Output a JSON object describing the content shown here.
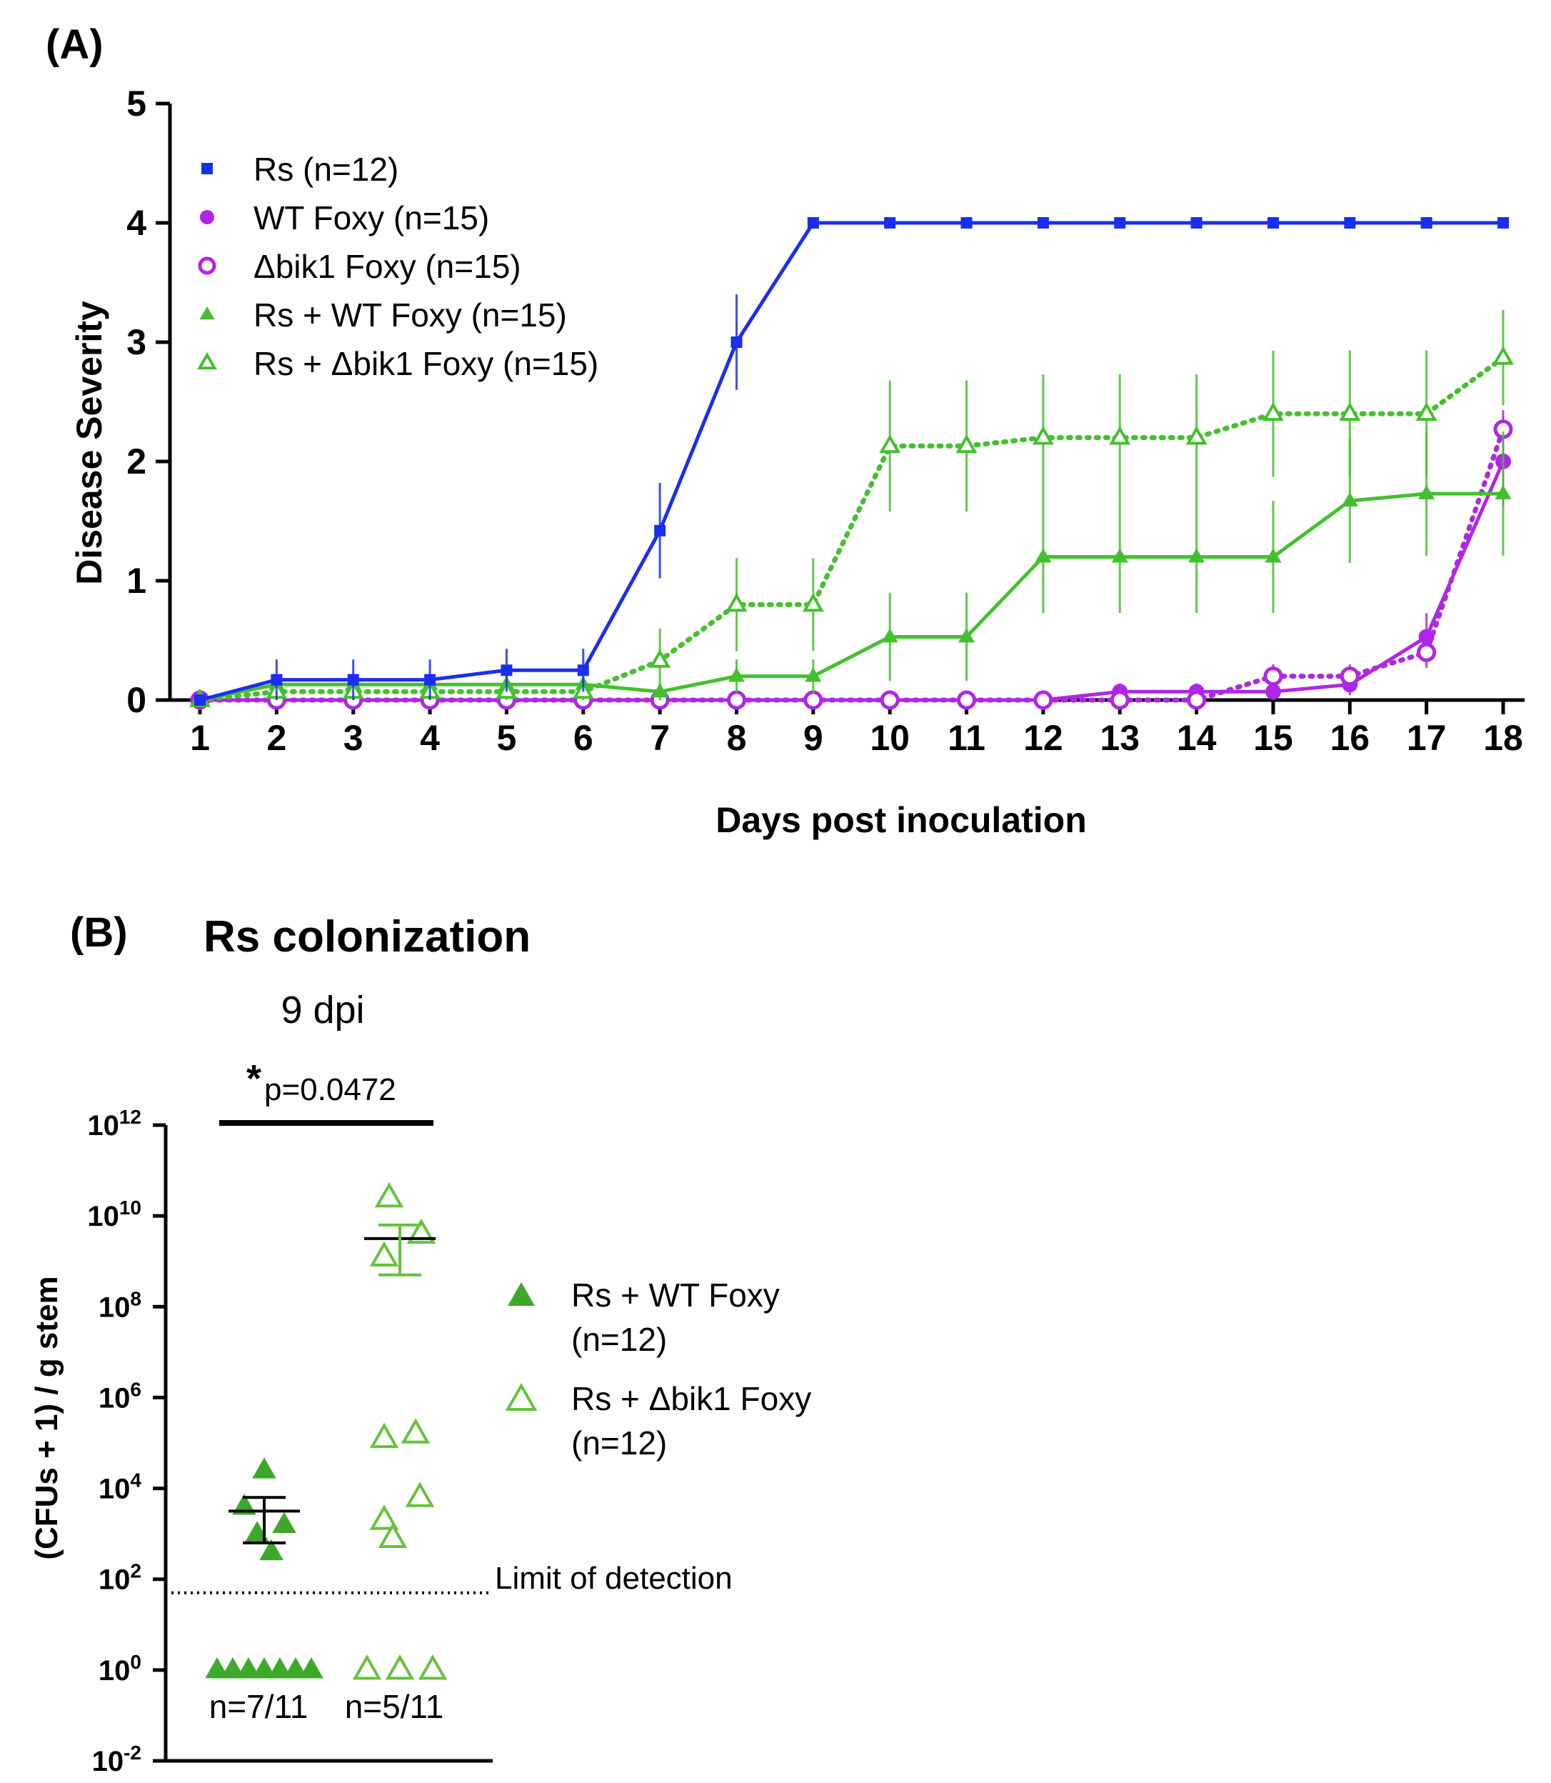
{
  "chart_data": [
    {
      "panel": "(A)",
      "type": "line",
      "xlabel": "Days post inoculation",
      "ylabel": "Disease Severity",
      "xlim": [
        1,
        18
      ],
      "ylim": [
        0,
        5
      ],
      "yticks": [
        "0",
        "1",
        "2",
        "3",
        "4",
        "5"
      ],
      "categories": [
        1,
        2,
        3,
        4,
        5,
        6,
        7,
        8,
        9,
        10,
        11,
        12,
        13,
        14,
        15,
        16,
        17,
        18
      ],
      "series": [
        {
          "name": "Rs (n=12)",
          "color": "#1a2ef0",
          "marker": "square",
          "line": "solid",
          "values": [
            0,
            0.17,
            0.17,
            0.17,
            0.25,
            0.25,
            1.42,
            3.0,
            4,
            4,
            4,
            4,
            4,
            4,
            4,
            4,
            4,
            4
          ],
          "err": [
            0,
            0.17,
            0.17,
            0.17,
            0.18,
            0.18,
            0.4,
            0.4,
            0,
            0,
            0,
            0,
            0,
            0,
            0,
            0,
            0,
            0
          ]
        },
        {
          "name": "WT Foxy (n=15)",
          "color": "#b026e6",
          "marker": "circle",
          "line": "solid",
          "values": [
            0,
            0,
            0,
            0,
            0,
            0,
            0,
            0,
            0,
            0,
            0,
            0,
            0.07,
            0.07,
            0.07,
            0.13,
            0.53,
            2.0
          ],
          "err": [
            0,
            0,
            0,
            0,
            0,
            0,
            0,
            0,
            0,
            0,
            0,
            0,
            0.07,
            0.07,
            0.07,
            0.09,
            0.2,
            0.38
          ]
        },
        {
          "name": "Δbik1 Foxy (n=15)",
          "color": "#b026e6",
          "marker": "circle-open",
          "line": "dotted",
          "values": [
            0,
            0,
            0,
            0,
            0,
            0,
            0,
            0,
            0,
            0,
            0,
            0,
            0,
            0,
            0.2,
            0.2,
            0.4,
            2.27
          ],
          "err": [
            0,
            0,
            0,
            0,
            0,
            0,
            0,
            0,
            0,
            0,
            0.0,
            0,
            0,
            0,
            0.1,
            0.1,
            0.13,
            0.16
          ]
        },
        {
          "name": "Rs + WT Foxy (n=15)",
          "color": "#44c02e",
          "marker": "triangle",
          "line": "solid",
          "values": [
            0,
            0.13,
            0.13,
            0.13,
            0.13,
            0.13,
            0.07,
            0.2,
            0.2,
            0.53,
            0.53,
            1.2,
            1.2,
            1.2,
            1.2,
            1.67,
            1.73,
            1.73
          ],
          "err": [
            0,
            0.09,
            0.09,
            0.09,
            0.09,
            0.09,
            0.07,
            0.14,
            0.14,
            0.37,
            0.37,
            0.47,
            0.47,
            0.47,
            0.47,
            0.52,
            0.52,
            0.52
          ]
        },
        {
          "name": "Rs + Δbik1 Foxy (n=15)",
          "color": "#44c02e",
          "marker": "triangle-open",
          "line": "dotted",
          "values": [
            0,
            0.07,
            0.07,
            0.07,
            0.07,
            0.07,
            0.33,
            0.8,
            0.8,
            2.13,
            2.13,
            2.2,
            2.2,
            2.2,
            2.4,
            2.4,
            2.4,
            2.87
          ],
          "err": [
            0,
            0.07,
            0.07,
            0.07,
            0.07,
            0.07,
            0.27,
            0.39,
            0.39,
            0.55,
            0.55,
            0.53,
            0.53,
            0.53,
            0.53,
            0.53,
            0.53,
            0.4
          ]
        }
      ]
    },
    {
      "panel": "(B)",
      "type": "scatter",
      "title": "Rs colonization",
      "subtitle": "9 dpi",
      "ylabel": "(CFUs + 1) / g stem",
      "yscale": "log",
      "ylim_exp": [
        -2,
        12
      ],
      "yticks": [
        {
          "base": "10",
          "exp": "12"
        },
        {
          "base": "10",
          "exp": "10"
        },
        {
          "base": "10",
          "exp": "8"
        },
        {
          "base": "10",
          "exp": "6"
        },
        {
          "base": "10",
          "exp": "4"
        },
        {
          "base": "10",
          "exp": "2"
        },
        {
          "base": "10",
          "exp": "0"
        },
        {
          "base": "10",
          "exp": "-2"
        }
      ],
      "limit_of_detection_exp": 1.7,
      "limit_label": "Limit of detection",
      "significance_star": "*",
      "significance_p": "p=0.0472",
      "series": [
        {
          "name": "Rs + WT Foxy",
          "name_n": "(n=12)",
          "color": "#3ea82a",
          "marker": "triangle",
          "log10_values": [
            4.4,
            3.6,
            3.2,
            3.0,
            2.6
          ],
          "zero_count": 7,
          "mean_log10": 3.5,
          "sem_log10": [
            2.8,
            3.8
          ],
          "count_label": "n=7/11"
        },
        {
          "name": "Rs + Δbik1 Foxy",
          "name_n": "(n=12)",
          "color": "#66c23d",
          "marker": "triangle-open",
          "log10_values": [
            10.4,
            9.6,
            9.1,
            5.2,
            5.1,
            3.8,
            3.3,
            2.9
          ],
          "zero_count": 3,
          "mean_log10": 9.5,
          "sem_log10": [
            8.7,
            9.8
          ],
          "count_label": "n=5/11"
        }
      ]
    }
  ],
  "panelA": {
    "label": "(A)"
  },
  "panelB": {
    "label": "(B)"
  }
}
